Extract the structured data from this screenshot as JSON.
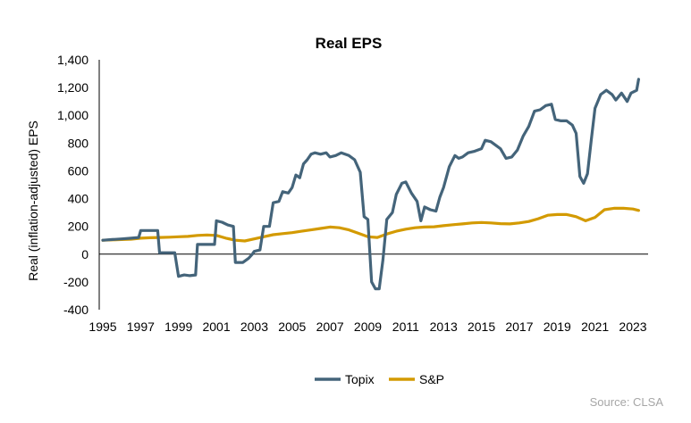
{
  "chart_data": {
    "type": "line",
    "title": "Real EPS",
    "ylabel": "Real (inflation-adjusted) EPS",
    "xlabel": "",
    "xlim": [
      1995,
      2023.7
    ],
    "ylim": [
      -400,
      1400
    ],
    "yticks": [
      -400,
      -200,
      0,
      200,
      400,
      600,
      800,
      1000,
      1200,
      1400
    ],
    "ytick_labels": [
      "-400",
      "-200",
      "0",
      "200",
      "400",
      "600",
      "800",
      "1,000",
      "1,200",
      "1,400"
    ],
    "xticks": [
      1995,
      1997,
      1999,
      2001,
      2003,
      2005,
      2007,
      2009,
      2011,
      2013,
      2015,
      2017,
      2019,
      2021,
      2023
    ],
    "xtick_labels": [
      "1995",
      "1997",
      "1999",
      "2001",
      "2003",
      "2005",
      "2007",
      "2009",
      "2011",
      "2013",
      "2015",
      "2017",
      "2019",
      "2021",
      "2023"
    ],
    "grid": false,
    "legend_position": "bottom-center",
    "series": [
      {
        "name": "Topix",
        "color": "#44647a",
        "points": [
          [
            1995.0,
            100
          ],
          [
            1995.5,
            105
          ],
          [
            1996.0,
            110
          ],
          [
            1996.5,
            115
          ],
          [
            1996.9,
            120
          ],
          [
            1997.0,
            170
          ],
          [
            1997.5,
            170
          ],
          [
            1997.9,
            170
          ],
          [
            1998.0,
            10
          ],
          [
            1998.5,
            10
          ],
          [
            1998.8,
            10
          ],
          [
            1999.0,
            -160
          ],
          [
            1999.3,
            -150
          ],
          [
            1999.6,
            -155
          ],
          [
            1999.9,
            -150
          ],
          [
            2000.0,
            70
          ],
          [
            2000.5,
            70
          ],
          [
            2000.9,
            70
          ],
          [
            2001.0,
            240
          ],
          [
            2001.3,
            230
          ],
          [
            2001.6,
            210
          ],
          [
            2001.9,
            200
          ],
          [
            2002.0,
            -60
          ],
          [
            2002.4,
            -60
          ],
          [
            2002.7,
            -30
          ],
          [
            2002.9,
            0
          ],
          [
            2003.0,
            20
          ],
          [
            2003.3,
            30
          ],
          [
            2003.5,
            200
          ],
          [
            2003.8,
            200
          ],
          [
            2004.0,
            370
          ],
          [
            2004.3,
            380
          ],
          [
            2004.5,
            450
          ],
          [
            2004.8,
            440
          ],
          [
            2005.0,
            480
          ],
          [
            2005.2,
            570
          ],
          [
            2005.4,
            550
          ],
          [
            2005.6,
            650
          ],
          [
            2005.8,
            680
          ],
          [
            2006.0,
            720
          ],
          [
            2006.2,
            730
          ],
          [
            2006.5,
            720
          ],
          [
            2006.8,
            730
          ],
          [
            2007.0,
            700
          ],
          [
            2007.3,
            710
          ],
          [
            2007.6,
            730
          ],
          [
            2008.0,
            710
          ],
          [
            2008.3,
            680
          ],
          [
            2008.6,
            590
          ],
          [
            2008.8,
            270
          ],
          [
            2009.0,
            250
          ],
          [
            2009.2,
            -200
          ],
          [
            2009.4,
            -250
          ],
          [
            2009.6,
            -250
          ],
          [
            2009.8,
            -40
          ],
          [
            2010.0,
            250
          ],
          [
            2010.3,
            300
          ],
          [
            2010.5,
            430
          ],
          [
            2010.8,
            510
          ],
          [
            2011.0,
            520
          ],
          [
            2011.3,
            440
          ],
          [
            2011.6,
            380
          ],
          [
            2011.8,
            240
          ],
          [
            2012.0,
            340
          ],
          [
            2012.3,
            320
          ],
          [
            2012.6,
            310
          ],
          [
            2012.8,
            410
          ],
          [
            2013.0,
            480
          ],
          [
            2013.3,
            630
          ],
          [
            2013.6,
            710
          ],
          [
            2013.8,
            690
          ],
          [
            2014.0,
            700
          ],
          [
            2014.3,
            730
          ],
          [
            2014.6,
            740
          ],
          [
            2015.0,
            760
          ],
          [
            2015.2,
            820
          ],
          [
            2015.5,
            810
          ],
          [
            2015.8,
            780
          ],
          [
            2016.0,
            760
          ],
          [
            2016.3,
            690
          ],
          [
            2016.6,
            700
          ],
          [
            2016.9,
            750
          ],
          [
            2017.2,
            850
          ],
          [
            2017.5,
            920
          ],
          [
            2017.8,
            1030
          ],
          [
            2018.1,
            1040
          ],
          [
            2018.4,
            1070
          ],
          [
            2018.7,
            1080
          ],
          [
            2018.9,
            970
          ],
          [
            2019.2,
            960
          ],
          [
            2019.5,
            960
          ],
          [
            2019.8,
            930
          ],
          [
            2020.0,
            870
          ],
          [
            2020.2,
            560
          ],
          [
            2020.4,
            510
          ],
          [
            2020.6,
            580
          ],
          [
            2020.8,
            820
          ],
          [
            2021.0,
            1050
          ],
          [
            2021.3,
            1150
          ],
          [
            2021.6,
            1180
          ],
          [
            2021.9,
            1150
          ],
          [
            2022.1,
            1110
          ],
          [
            2022.4,
            1160
          ],
          [
            2022.7,
            1100
          ],
          [
            2022.9,
            1160
          ],
          [
            2023.2,
            1180
          ],
          [
            2023.3,
            1260
          ]
        ]
      },
      {
        "name": "S&P",
        "color": "#d39a00",
        "points": [
          [
            1995.0,
            100
          ],
          [
            1995.5,
            103
          ],
          [
            1996.0,
            105
          ],
          [
            1996.5,
            108
          ],
          [
            1997.0,
            115
          ],
          [
            1997.5,
            118
          ],
          [
            1998.0,
            120
          ],
          [
            1998.5,
            122
          ],
          [
            1999.0,
            125
          ],
          [
            1999.5,
            128
          ],
          [
            2000.0,
            135
          ],
          [
            2000.5,
            138
          ],
          [
            2001.0,
            135
          ],
          [
            2001.5,
            115
          ],
          [
            2002.0,
            100
          ],
          [
            2002.5,
            95
          ],
          [
            2003.0,
            110
          ],
          [
            2003.5,
            125
          ],
          [
            2004.0,
            140
          ],
          [
            2004.5,
            148
          ],
          [
            2005.0,
            155
          ],
          [
            2005.5,
            165
          ],
          [
            2006.0,
            175
          ],
          [
            2006.5,
            185
          ],
          [
            2007.0,
            195
          ],
          [
            2007.5,
            190
          ],
          [
            2008.0,
            175
          ],
          [
            2008.5,
            150
          ],
          [
            2009.0,
            125
          ],
          [
            2009.5,
            120
          ],
          [
            2010.0,
            145
          ],
          [
            2010.5,
            165
          ],
          [
            2011.0,
            180
          ],
          [
            2011.5,
            190
          ],
          [
            2012.0,
            195
          ],
          [
            2012.5,
            197
          ],
          [
            2013.0,
            205
          ],
          [
            2013.5,
            212
          ],
          [
            2014.0,
            218
          ],
          [
            2014.5,
            225
          ],
          [
            2015.0,
            228
          ],
          [
            2015.5,
            225
          ],
          [
            2016.0,
            220
          ],
          [
            2016.5,
            218
          ],
          [
            2017.0,
            225
          ],
          [
            2017.5,
            235
          ],
          [
            2018.0,
            255
          ],
          [
            2018.5,
            280
          ],
          [
            2019.0,
            285
          ],
          [
            2019.5,
            285
          ],
          [
            2020.0,
            270
          ],
          [
            2020.5,
            240
          ],
          [
            2021.0,
            265
          ],
          [
            2021.5,
            320
          ],
          [
            2022.0,
            330
          ],
          [
            2022.5,
            330
          ],
          [
            2023.0,
            325
          ],
          [
            2023.3,
            315
          ]
        ]
      }
    ]
  },
  "source": "Source: CLSA"
}
